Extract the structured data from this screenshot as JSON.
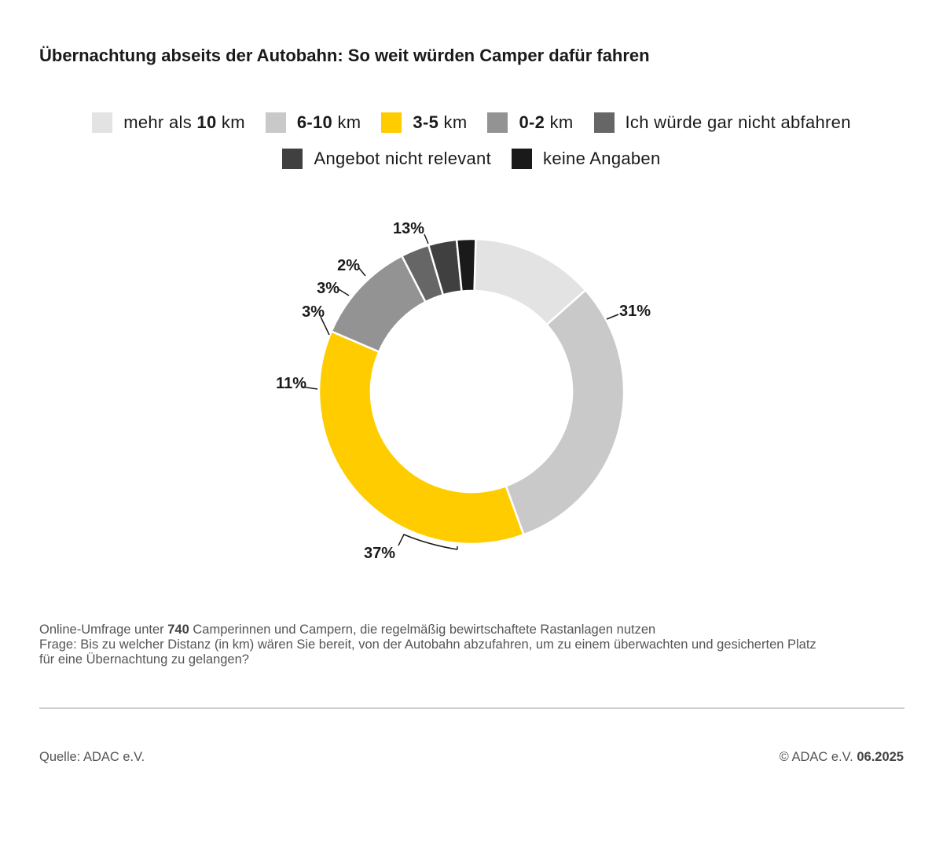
{
  "title": "Übernachtung abseits der Autobahn: So weit würden Camper dafür fahren",
  "legend": [
    {
      "label": "mehr als ",
      "bold": "10",
      "rest": " km",
      "color": "#e3e3e3"
    },
    {
      "label": "",
      "bold": "6-10",
      "rest": " km",
      "color": "#c9c9c9"
    },
    {
      "label": "",
      "bold": "3-5",
      "rest": " km",
      "color": "#ffcc00"
    },
    {
      "label": "",
      "bold": "0-2",
      "rest": " km",
      "color": "#939393"
    },
    {
      "label": "Ich würde gar nicht abfahren",
      "bold": "",
      "rest": "",
      "color": "#666666"
    },
    {
      "label": "Angebot nicht relevant",
      "bold": "",
      "rest": "",
      "color": "#404040"
    },
    {
      "label": "keine Angaben",
      "bold": "",
      "rest": "",
      "color": "#1a1a1a"
    }
  ],
  "chart_data": {
    "type": "pie",
    "style": "donut",
    "categories": [
      "mehr als 10 km",
      "6-10 km",
      "3-5 km",
      "0-2 km",
      "Ich würde gar nicht abfahren",
      "Angebot nicht relevant",
      "keine Angaben"
    ],
    "values": [
      13,
      31,
      37,
      11,
      3,
      3,
      2
    ],
    "labels": [
      "13%",
      "31%",
      "37%",
      "11%",
      "3%",
      "3%",
      "2%"
    ],
    "colors": [
      "#e3e3e3",
      "#c9c9c9",
      "#ffcc00",
      "#939393",
      "#666666",
      "#404040",
      "#1a1a1a"
    ],
    "legend_position": "top"
  },
  "note": {
    "line1_pre": "Online-Umfrage unter ",
    "line1_num": "740",
    "line1_post": " Camperinnen und Campern, die regelmäßig bewirtschaftete Rastanlagen nutzen",
    "line2": "Frage: Bis zu welcher Distanz (in km) wären Sie bereit, von der Autobahn abzufahren, um zu einem überwachten und gesicherten Platz",
    "line3": "für eine Übernachtung zu gelangen?"
  },
  "source": "Quelle: ADAC e.V.",
  "copyright": {
    "text": "© ADAC e.V. ",
    "date": "06.2025"
  }
}
